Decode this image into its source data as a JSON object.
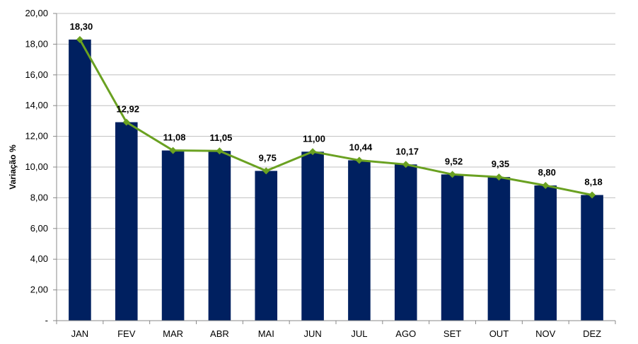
{
  "chart_data": {
    "type": "bar",
    "title": "",
    "xlabel": "",
    "ylabel": "Variação %",
    "ylim": [
      0,
      20
    ],
    "grid": true,
    "y_ticks": [
      "-",
      "2,00",
      "4,00",
      "6,00",
      "8,00",
      "10,00",
      "12,00",
      "14,00",
      "16,00",
      "18,00",
      "20,00"
    ],
    "categories": [
      "JAN",
      "FEV",
      "MAR",
      "ABR",
      "MAI",
      "JUN",
      "JUL",
      "AGO",
      "SET",
      "OUT",
      "NOV",
      "DEZ"
    ],
    "values": [
      18.3,
      12.92,
      11.08,
      11.05,
      9.75,
      11.0,
      10.44,
      10.17,
      9.52,
      9.35,
      8.8,
      8.18
    ],
    "data_labels": [
      "18,30",
      "12,92",
      "11,08",
      "11,05",
      "9,75",
      "11,00",
      "10,44",
      "10,17",
      "9,52",
      "9,35",
      "8,80",
      "8,18"
    ],
    "overlay_line": {
      "type": "line",
      "values": [
        18.3,
        12.92,
        11.08,
        11.05,
        9.75,
        11.0,
        10.44,
        10.17,
        9.52,
        9.35,
        8.8,
        8.18
      ],
      "marker": "diamond"
    },
    "colors": {
      "bar": "#002060",
      "line": "#6aa121",
      "grid": "#c0c0c0",
      "axis": "#888888"
    }
  }
}
